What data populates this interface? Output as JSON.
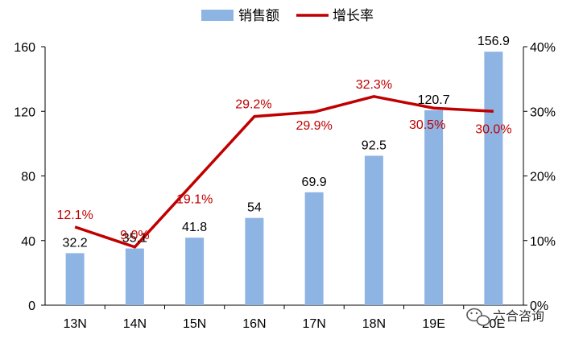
{
  "chart_data": {
    "type": "bar",
    "categories": [
      "13N",
      "14N",
      "15N",
      "16N",
      "17N",
      "18N",
      "19E",
      "20E"
    ],
    "series": [
      {
        "name": "销售额",
        "type": "bar",
        "axis": "left",
        "values": [
          32.2,
          35.1,
          41.8,
          54,
          69.9,
          92.5,
          120.7,
          156.9
        ],
        "labels": [
          "32.2",
          "35.1",
          "41.8",
          "54",
          "69.9",
          "92.5",
          "120.7",
          "156.9"
        ],
        "color": "#8eb4e3"
      },
      {
        "name": "增长率",
        "type": "line",
        "axis": "right",
        "values": [
          12.1,
          9.0,
          19.1,
          29.2,
          29.9,
          32.3,
          30.5,
          30.0
        ],
        "labels": [
          "12.1%",
          "9.0%",
          "19.1%",
          "29.2%",
          "29.9%",
          "32.3%",
          "30.5%",
          "30.0%"
        ],
        "color": "#c00000"
      }
    ],
    "y_left": {
      "lim": [
        0,
        160
      ],
      "ticks": [
        "0",
        "40",
        "80",
        "120",
        "160"
      ]
    },
    "y_right": {
      "lim": [
        0,
        40
      ],
      "ticks": [
        "0%",
        "10%",
        "20%",
        "30%",
        "40%"
      ]
    },
    "legend": {
      "position": "top-center",
      "items": [
        "销售额",
        "增长率"
      ]
    },
    "grid": false
  },
  "watermark": {
    "text": "六合咨询"
  }
}
